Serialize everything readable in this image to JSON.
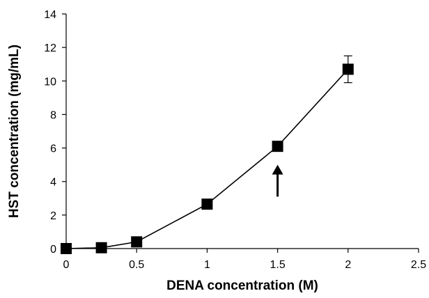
{
  "chart_data": {
    "type": "line",
    "title": "",
    "xlabel": "DENA concentration (M)",
    "ylabel": "HST concentration (mg/mL)",
    "xlim": [
      0,
      2.5
    ],
    "ylim": [
      0,
      14
    ],
    "x_ticks": [
      0,
      0.5,
      1,
      1.5,
      2,
      2.5
    ],
    "y_ticks": [
      0,
      2,
      4,
      6,
      8,
      10,
      12,
      14
    ],
    "x_tick_labels": [
      "0",
      "0.5",
      "1",
      "1.5",
      "2",
      "2.5"
    ],
    "y_tick_labels": [
      "0",
      "2",
      "4",
      "6",
      "8",
      "10",
      "12",
      "14"
    ],
    "grid": false,
    "legend": "none",
    "series": [
      {
        "x": [
          0,
          0.25,
          0.5,
          1,
          1.5,
          2
        ],
        "y": [
          0,
          0.05,
          0.4,
          2.65,
          6.1,
          10.7
        ],
        "error": [
          0,
          0,
          0,
          0,
          0,
          0.8
        ],
        "marker": "square",
        "color": "#000000"
      }
    ],
    "annotations": [
      {
        "type": "arrow",
        "x": 1.5,
        "y_from": 3.1,
        "y_to": 5.0,
        "direction": "up"
      }
    ]
  }
}
